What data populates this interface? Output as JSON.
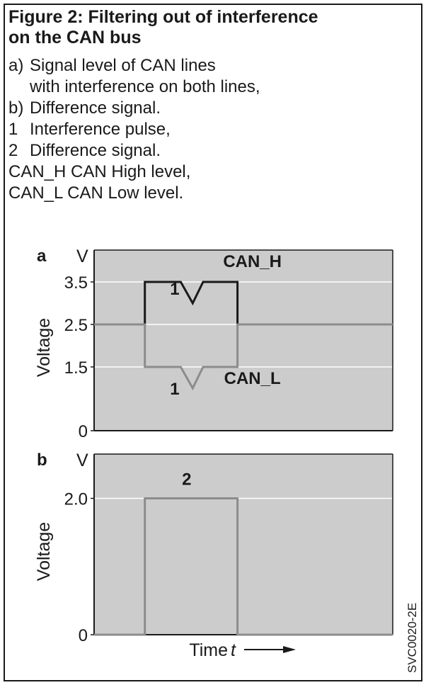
{
  "figure": {
    "title_line1": "Figure 2: Filtering out of interference",
    "title_line2": "on the CAN bus"
  },
  "legend": [
    {
      "key": "a)",
      "text": "Signal level of CAN lines"
    },
    {
      "key": "",
      "text": "with interference on both lines,"
    },
    {
      "key": "b)",
      "text": "Difference signal."
    },
    {
      "key": "1",
      "text": "Interference pulse,"
    },
    {
      "key": "2",
      "text": "Difference signal."
    },
    {
      "key": "CAN_H",
      "text": "CAN High level,"
    },
    {
      "key": "CAN_L",
      "text": "CAN Low level."
    }
  ],
  "time_label": "Time",
  "time_symbol": "t",
  "figure_code": "SVC0020-2E",
  "colors": {
    "plot_bg": "#cccccc",
    "can_h": "#1a1a1a",
    "can_l": "#8c8c8c",
    "diff": "#8c8c8c",
    "grid": "#ffffff"
  },
  "chart_data": [
    {
      "type": "line",
      "panel": "a",
      "unit": "V",
      "ylabel": "Voltage",
      "ylim": [
        0,
        4.25
      ],
      "yticks": [
        0,
        1.5,
        2.5,
        3.5
      ],
      "ytick_labels": [
        "0",
        "1.5",
        "2.5",
        "3.5"
      ],
      "xlim": [
        0,
        100
      ],
      "grid": true,
      "series": [
        {
          "name": "CAN_H",
          "color": "#1a1a1a",
          "points": [
            [
              0,
              2.5
            ],
            [
              17,
              2.5
            ],
            [
              17,
              3.5
            ],
            [
              29,
              3.5
            ],
            [
              33,
              3.0
            ],
            [
              36.5,
              3.5
            ],
            [
              48,
              3.5
            ],
            [
              48,
              2.5
            ],
            [
              100,
              2.5
            ]
          ]
        },
        {
          "name": "CAN_L",
          "color": "#8c8c8c",
          "points": [
            [
              0,
              2.5
            ],
            [
              17,
              2.5
            ],
            [
              17,
              1.5
            ],
            [
              29,
              1.5
            ],
            [
              33,
              1.0
            ],
            [
              36.5,
              1.5
            ],
            [
              48,
              1.5
            ],
            [
              48,
              2.5
            ],
            [
              100,
              2.5
            ]
          ]
        }
      ],
      "annotations": [
        {
          "text": "CAN_H",
          "x": 53,
          "y": 3.85,
          "bold": true
        },
        {
          "text": "CAN_L",
          "x": 53,
          "y": 1.1,
          "bold": true
        },
        {
          "text": "1",
          "x": 27,
          "y": 3.2,
          "bold": true
        },
        {
          "text": "1",
          "x": 27,
          "y": 0.85,
          "bold": true
        }
      ]
    },
    {
      "type": "line",
      "panel": "b",
      "unit": "V",
      "ylabel": "Voltage",
      "ylim": [
        0,
        2.65
      ],
      "yticks": [
        0,
        2.0
      ],
      "ytick_labels": [
        "0",
        "2.0"
      ],
      "xlim": [
        0,
        100
      ],
      "grid": true,
      "series": [
        {
          "name": "",
          "color": "#8c8c8c",
          "points": [
            [
              0,
              0
            ],
            [
              17,
              0
            ],
            [
              17,
              2.0
            ],
            [
              48,
              2.0
            ],
            [
              48,
              0
            ],
            [
              100,
              0
            ]
          ]
        }
      ],
      "annotations": [
        {
          "text": "2",
          "x": 31,
          "y": 2.2,
          "bold": true
        }
      ]
    }
  ]
}
